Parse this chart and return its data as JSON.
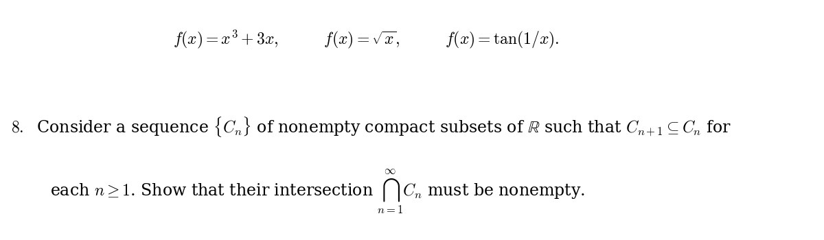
{
  "background_color": "#ffffff",
  "line1": "f(x) = x^3 + 3x, \\qquad f(x) = \\sqrt{x}, \\qquad f(x) = \\tan(1/x).",
  "line2_num": "\\textbf{8.}",
  "line2_text": "Consider a sequence $\\{C_n\\}$ of nonempty compact subsets of $\\mathbb{R}$ such that $C_{n+1} \\subseteq C_n$ for",
  "line3_text": "each $n \\geq 1$. Show that their intersection $\\bigcap_{n=1}^{\\infty} C_n$ must be nonempty.",
  "font_size_eq": 17,
  "font_size_text": 17,
  "text_color": "#000000"
}
